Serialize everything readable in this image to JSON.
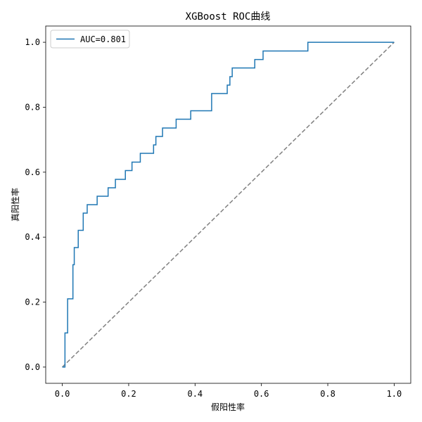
{
  "chart_data": {
    "type": "line",
    "title": "XGBoost ROC曲线",
    "xlabel": "假阳性率",
    "ylabel": "真阳性率",
    "xlim": [
      -0.05,
      1.05
    ],
    "ylim": [
      -0.05,
      1.05
    ],
    "x_ticks": [
      "0.0",
      "0.2",
      "0.4",
      "0.6",
      "0.8",
      "1.0"
    ],
    "y_ticks": [
      "0.0",
      "0.2",
      "0.4",
      "0.6",
      "0.8",
      "1.0"
    ],
    "grid": false,
    "legend_position": "top-left",
    "colors": {
      "roc": "#1f77b4",
      "diagonal": "#808080"
    },
    "series": [
      {
        "name": "AUC=0.801",
        "x": [
          0.0,
          0.0,
          0.008,
          0.008,
          0.016,
          0.016,
          0.032,
          0.032,
          0.036,
          0.036,
          0.048,
          0.048,
          0.063,
          0.063,
          0.075,
          0.075,
          0.105,
          0.105,
          0.138,
          0.138,
          0.16,
          0.16,
          0.19,
          0.19,
          0.21,
          0.21,
          0.235,
          0.235,
          0.275,
          0.275,
          0.282,
          0.282,
          0.302,
          0.302,
          0.343,
          0.343,
          0.387,
          0.387,
          0.45,
          0.45,
          0.497,
          0.497,
          0.505,
          0.505,
          0.512,
          0.512,
          0.58,
          0.58,
          0.605,
          0.605,
          0.74,
          0.74,
          1.0
        ],
        "y": [
          0.0,
          0.0,
          0.0,
          0.105,
          0.105,
          0.21,
          0.21,
          0.315,
          0.315,
          0.368,
          0.368,
          0.421,
          0.421,
          0.474,
          0.474,
          0.5,
          0.5,
          0.526,
          0.526,
          0.552,
          0.552,
          0.578,
          0.578,
          0.605,
          0.605,
          0.631,
          0.631,
          0.658,
          0.658,
          0.684,
          0.684,
          0.71,
          0.71,
          0.736,
          0.736,
          0.763,
          0.763,
          0.789,
          0.789,
          0.842,
          0.842,
          0.868,
          0.868,
          0.894,
          0.894,
          0.921,
          0.921,
          0.947,
          0.947,
          0.973,
          0.973,
          1.0,
          1.0
        ]
      },
      {
        "x": [
          0.0,
          1.0
        ],
        "y": [
          0.0,
          1.0
        ]
      }
    ]
  }
}
